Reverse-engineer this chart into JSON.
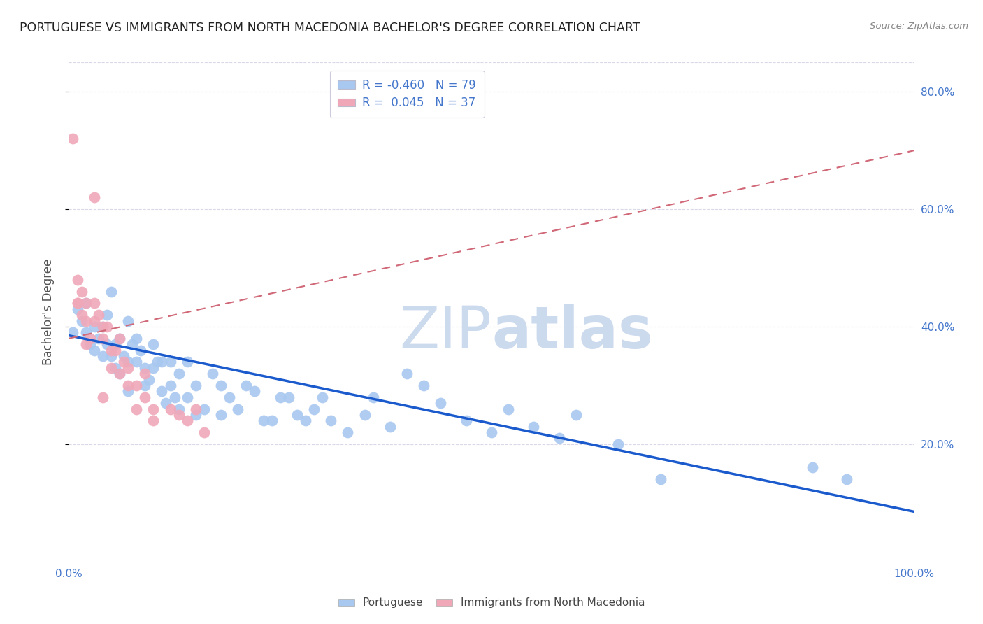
{
  "title": "PORTUGUESE VS IMMIGRANTS FROM NORTH MACEDONIA BACHELOR'S DEGREE CORRELATION CHART",
  "source": "Source: ZipAtlas.com",
  "ylabel": "Bachelor's Degree",
  "blue_R": -0.46,
  "blue_N": 79,
  "pink_R": 0.045,
  "pink_N": 37,
  "blue_color": "#a8c8f0",
  "pink_color": "#f0a8b8",
  "blue_line_color": "#1a5acd",
  "pink_line_color": "#d06878",
  "grid_color": "#d8d8e8",
  "watermark_color": "#ccdaee",
  "blue_x": [
    0.005,
    0.01,
    0.015,
    0.02,
    0.02,
    0.025,
    0.03,
    0.03,
    0.035,
    0.04,
    0.04,
    0.045,
    0.045,
    0.05,
    0.05,
    0.055,
    0.055,
    0.06,
    0.06,
    0.065,
    0.07,
    0.07,
    0.07,
    0.075,
    0.08,
    0.08,
    0.085,
    0.09,
    0.09,
    0.095,
    0.1,
    0.1,
    0.105,
    0.11,
    0.11,
    0.115,
    0.12,
    0.12,
    0.125,
    0.13,
    0.13,
    0.14,
    0.14,
    0.15,
    0.15,
    0.16,
    0.17,
    0.18,
    0.18,
    0.19,
    0.2,
    0.21,
    0.22,
    0.23,
    0.24,
    0.25,
    0.26,
    0.27,
    0.28,
    0.29,
    0.3,
    0.31,
    0.33,
    0.35,
    0.36,
    0.38,
    0.4,
    0.42,
    0.44,
    0.47,
    0.5,
    0.52,
    0.55,
    0.58,
    0.6,
    0.65,
    0.7,
    0.88,
    0.92
  ],
  "blue_y": [
    0.39,
    0.43,
    0.41,
    0.44,
    0.39,
    0.37,
    0.4,
    0.36,
    0.38,
    0.35,
    0.4,
    0.42,
    0.37,
    0.35,
    0.46,
    0.37,
    0.33,
    0.32,
    0.38,
    0.35,
    0.41,
    0.34,
    0.29,
    0.37,
    0.34,
    0.38,
    0.36,
    0.3,
    0.33,
    0.31,
    0.33,
    0.37,
    0.34,
    0.29,
    0.34,
    0.27,
    0.3,
    0.34,
    0.28,
    0.32,
    0.26,
    0.28,
    0.34,
    0.3,
    0.25,
    0.26,
    0.32,
    0.25,
    0.3,
    0.28,
    0.26,
    0.3,
    0.29,
    0.24,
    0.24,
    0.28,
    0.28,
    0.25,
    0.24,
    0.26,
    0.28,
    0.24,
    0.22,
    0.25,
    0.28,
    0.23,
    0.32,
    0.3,
    0.27,
    0.24,
    0.22,
    0.26,
    0.23,
    0.21,
    0.25,
    0.2,
    0.14,
    0.16,
    0.14
  ],
  "pink_x": [
    0.005,
    0.01,
    0.01,
    0.01,
    0.015,
    0.015,
    0.02,
    0.02,
    0.02,
    0.025,
    0.03,
    0.03,
    0.03,
    0.035,
    0.04,
    0.04,
    0.04,
    0.045,
    0.05,
    0.05,
    0.055,
    0.06,
    0.06,
    0.065,
    0.07,
    0.07,
    0.08,
    0.08,
    0.09,
    0.09,
    0.1,
    0.1,
    0.12,
    0.13,
    0.14,
    0.15,
    0.16
  ],
  "pink_y": [
    0.72,
    0.48,
    0.44,
    0.44,
    0.46,
    0.42,
    0.44,
    0.41,
    0.37,
    0.38,
    0.62,
    0.44,
    0.41,
    0.42,
    0.4,
    0.38,
    0.28,
    0.4,
    0.36,
    0.33,
    0.36,
    0.38,
    0.32,
    0.34,
    0.33,
    0.3,
    0.26,
    0.3,
    0.28,
    0.32,
    0.26,
    0.24,
    0.26,
    0.25,
    0.24,
    0.26,
    0.22
  ],
  "blue_line_x0": 0.0,
  "blue_line_x1": 1.0,
  "blue_line_y0": 0.385,
  "blue_line_y1": 0.085,
  "pink_line_x0": 0.0,
  "pink_line_x1": 1.0,
  "pink_line_y0": 0.38,
  "pink_line_y1": 0.7,
  "xlim": [
    0.0,
    1.0
  ],
  "ylim": [
    0.0,
    0.85
  ],
  "xtick_positions": [
    0.0,
    0.5,
    1.0
  ],
  "xtick_labels": [
    "0.0%",
    "",
    "100.0%"
  ],
  "ytick_positions": [
    0.2,
    0.4,
    0.6,
    0.8
  ],
  "ytick_labels_right": [
    "20.0%",
    "40.0%",
    "60.0%",
    "80.0%"
  ],
  "tick_color": "#4477cc",
  "title_color": "#222222",
  "source_color": "#888888",
  "ylabel_color": "#555555"
}
